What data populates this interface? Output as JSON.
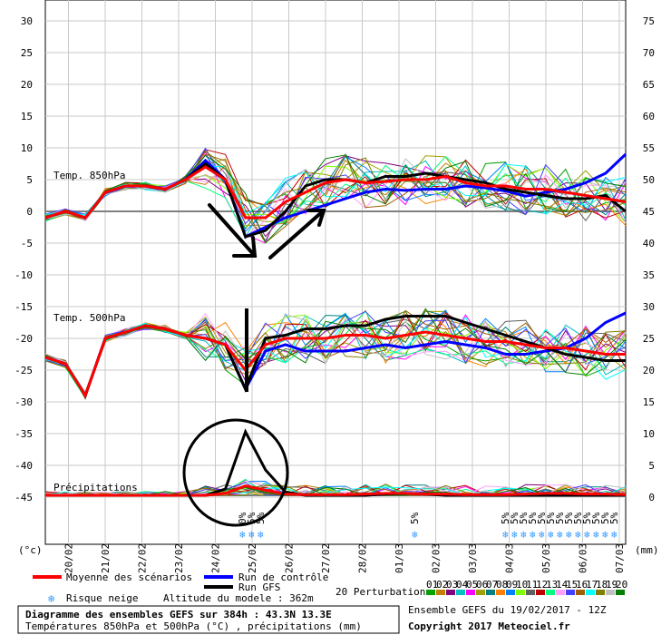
{
  "chart_data": {
    "type": "line",
    "title": "Diagramme des ensembles GEFS sur 384h : 43.3N 13.3E",
    "subtitle": "Températures 850hPa et 500hPa (°C) , précipitations (mm)",
    "left_axis": {
      "unit": "(°c)",
      "ticks": [
        30,
        25,
        20,
        15,
        10,
        5,
        0,
        -5,
        -10,
        -15,
        -20,
        -25,
        -30,
        -35,
        -40,
        -45
      ]
    },
    "right_axis": {
      "unit": "(mm)",
      "ticks": [
        75,
        70,
        65,
        60,
        55,
        50,
        45,
        40,
        35,
        30,
        25,
        20,
        15,
        10,
        5,
        0
      ]
    },
    "x_labels": [
      "20/02",
      "21/02",
      "22/02",
      "23/02",
      "24/02",
      "25/02",
      "26/02",
      "27/02",
      "28/02",
      "01/03",
      "02/03",
      "03/03",
      "04/03",
      "05/03",
      "06/03",
      "07/03"
    ],
    "panels": [
      {
        "label": "Temp. 850hPa",
        "mean": [
          -1,
          0,
          -1,
          3,
          4,
          4,
          3.5,
          5,
          7,
          5,
          -1,
          -1,
          1.5,
          3,
          4.5,
          5,
          4.5,
          4.7,
          5,
          5,
          5.5,
          4.5,
          4,
          4,
          3.5,
          3.5,
          3,
          2.5,
          2,
          1.5
        ],
        "control": [
          -1,
          0,
          -1,
          3,
          4,
          4,
          3.5,
          5,
          8,
          5,
          -4,
          -2.5,
          -1,
          0,
          1,
          2,
          3,
          3.5,
          3.3,
          3.5,
          3.5,
          4,
          3.7,
          3.2,
          2.4,
          3,
          3.5,
          4.5,
          6,
          9
        ],
        "gfs": [
          -1,
          0,
          -1,
          3,
          4,
          4,
          3.5,
          5,
          7.5,
          5,
          -4,
          -3,
          0,
          4,
          5,
          5,
          4.5,
          5.5,
          5.5,
          6,
          5.5,
          5,
          4.5,
          3.5,
          3,
          2.5,
          2,
          2,
          2.5,
          0
        ]
      },
      {
        "label": "Temp. 500hPa",
        "mean": [
          -23,
          -24,
          -29,
          -20,
          -19,
          -18,
          -18.5,
          -19.5,
          -20,
          -21,
          -25,
          -21,
          -20,
          -20,
          -20,
          -19.5,
          -19.5,
          -20,
          -19.5,
          -19,
          -19.5,
          -20,
          -20.5,
          -20.5,
          -21,
          -21.5,
          -21.5,
          -22,
          -22.5,
          -22.5
        ],
        "control": [
          -23,
          -24,
          -29,
          -20,
          -19,
          -18,
          -18.5,
          -19.5,
          -20,
          -21,
          -28,
          -22,
          -21,
          -22,
          -22,
          -22,
          -21.5,
          -21,
          -21.5,
          -21,
          -20.5,
          -21,
          -21.5,
          -22.5,
          -22.5,
          -22,
          -21.5,
          -20,
          -17.5,
          -16
        ],
        "gfs": [
          -23,
          -24,
          -29,
          -20,
          -19,
          -18,
          -18.5,
          -19.5,
          -20,
          -21,
          -28,
          -20,
          -19.5,
          -18.5,
          -18.5,
          -18,
          -18,
          -17,
          -16.5,
          -16.5,
          -16.5,
          -17.5,
          -18.5,
          -19.5,
          -20.5,
          -21.5,
          -22.5,
          -23,
          -23.5,
          -23.5
        ]
      },
      {
        "label": "Précipitations",
        "mean": [
          0,
          0,
          0,
          0,
          0,
          0,
          0,
          0,
          0,
          0.3,
          1.5,
          0.8,
          0.2,
          0.1,
          0.1,
          0.1,
          0.2,
          0.3,
          0.3,
          0.2,
          0.2,
          0.1,
          0.1,
          0.1,
          0.2,
          0.3,
          0.3,
          0.2,
          0.2,
          0.1
        ],
        "gfs": [
          0,
          0,
          0,
          0,
          0,
          0,
          0,
          0,
          0,
          1,
          10,
          4,
          0.5,
          0,
          0,
          0,
          0,
          0.2,
          0.3,
          0.2,
          0,
          0,
          0,
          0,
          0,
          0,
          0,
          0,
          0,
          0
        ]
      }
    ],
    "snow_risk": [
      "0%",
      "5%",
      "5%",
      "5%",
      "5%",
      "5%",
      "5%",
      "5%",
      "5%",
      "5%",
      "5%",
      "5%",
      "5%",
      "5%",
      "5%",
      "5%",
      "5%",
      "5%"
    ],
    "perturbation_numbers": [
      "01",
      "02",
      "03",
      "04",
      "05",
      "06",
      "07",
      "08",
      "09",
      "10",
      "11",
      "12",
      "13",
      "14",
      "15",
      "16",
      "17",
      "18",
      "19",
      "20"
    ],
    "perturbation_colors": [
      "#00a000",
      "#c08000",
      "#800080",
      "#00c0c0",
      "#ff00ff",
      "#a0a000",
      "#008080",
      "#ff8000",
      "#0080ff",
      "#80ff00",
      "#606060",
      "#c00000",
      "#00ff80",
      "#ffa0ff",
      "#4040ff",
      "#a06000",
      "#00ffff",
      "#808000",
      "#c0c0c0",
      "#008000"
    ]
  },
  "legend": {
    "mean": "Moyenne des scénarios",
    "control": "Run de contrôle",
    "gfs": "Run GFS",
    "snow": "Risque neige",
    "altitude": "Altitude du modele : 362m",
    "perturbations": "20 Perturbations",
    "mean_color": "#ff0000",
    "control_color": "#0000ff",
    "gfs_color": "#000000"
  },
  "footer": {
    "ensemble": "Ensemble GEFS du 19/02/2017 - 12Z",
    "copyright": "Copyright 2017 Meteociel.fr"
  }
}
